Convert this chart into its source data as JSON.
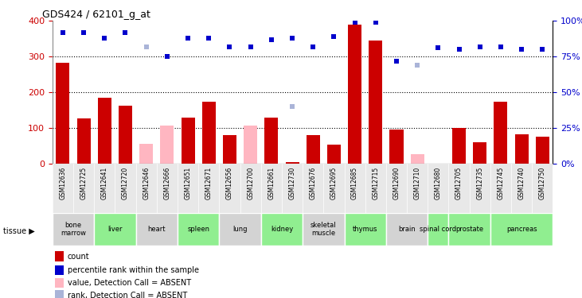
{
  "title": "GDS424 / 62101_g_at",
  "samples": [
    "GSM12636",
    "GSM12725",
    "GSM12641",
    "GSM12720",
    "GSM12646",
    "GSM12666",
    "GSM12651",
    "GSM12671",
    "GSM12656",
    "GSM12700",
    "GSM12661",
    "GSM12730",
    "GSM12676",
    "GSM12695",
    "GSM12685",
    "GSM12715",
    "GSM12690",
    "GSM12710",
    "GSM12680",
    "GSM12705",
    "GSM12735",
    "GSM12745",
    "GSM12740",
    "GSM12750"
  ],
  "count_values": [
    283,
    127,
    186,
    162,
    null,
    null,
    130,
    175,
    80,
    null,
    130,
    5,
    80,
    55,
    390,
    345,
    97,
    null,
    null,
    100,
    60,
    175,
    82,
    77
  ],
  "count_absent": [
    null,
    null,
    null,
    null,
    57,
    108,
    null,
    null,
    null,
    108,
    null,
    null,
    null,
    null,
    null,
    null,
    null,
    28,
    null,
    null,
    null,
    null,
    null,
    null
  ],
  "rank_values": [
    92,
    92,
    88,
    92,
    null,
    75,
    88,
    88,
    82,
    82,
    87,
    88,
    82,
    89,
    99,
    99,
    72,
    null,
    81,
    80,
    82,
    82,
    80,
    80
  ],
  "rank_absent": [
    null,
    null,
    null,
    null,
    82,
    null,
    null,
    null,
    null,
    null,
    null,
    40,
    null,
    null,
    null,
    null,
    null,
    69,
    null,
    null,
    null,
    null,
    null,
    null
  ],
  "tissues": [
    {
      "name": "bone\nmarrow",
      "start": 0,
      "end": 2,
      "color": "#d3d3d3"
    },
    {
      "name": "liver",
      "start": 2,
      "end": 4,
      "color": "#90ee90"
    },
    {
      "name": "heart",
      "start": 4,
      "end": 6,
      "color": "#d3d3d3"
    },
    {
      "name": "spleen",
      "start": 6,
      "end": 8,
      "color": "#90ee90"
    },
    {
      "name": "lung",
      "start": 8,
      "end": 10,
      "color": "#d3d3d3"
    },
    {
      "name": "kidney",
      "start": 10,
      "end": 12,
      "color": "#90ee90"
    },
    {
      "name": "skeletal\nmuscle",
      "start": 12,
      "end": 14,
      "color": "#d3d3d3"
    },
    {
      "name": "thymus",
      "start": 14,
      "end": 16,
      "color": "#90ee90"
    },
    {
      "name": "brain",
      "start": 16,
      "end": 18,
      "color": "#d3d3d3"
    },
    {
      "name": "spinal cord",
      "start": 18,
      "end": 19,
      "color": "#90ee90"
    },
    {
      "name": "prostate",
      "start": 19,
      "end": 21,
      "color": "#90ee90"
    },
    {
      "name": "pancreas",
      "start": 21,
      "end": 24,
      "color": "#90ee90"
    }
  ],
  "ylim_left": [
    0,
    400
  ],
  "ylim_right": [
    0,
    100
  ],
  "yticks_left": [
    0,
    100,
    200,
    300,
    400
  ],
  "yticks_right": [
    0,
    25,
    50,
    75,
    100
  ],
  "bar_color": "#cc0000",
  "bar_absent_color": "#ffb6c1",
  "rank_color": "#0000cc",
  "rank_absent_color": "#aab4d8",
  "grid_color": "black",
  "marker_size": 5,
  "legend_items": [
    {
      "color": "#cc0000",
      "label": "count"
    },
    {
      "color": "#0000cc",
      "label": "percentile rank within the sample"
    },
    {
      "color": "#ffb6c1",
      "label": "value, Detection Call = ABSENT"
    },
    {
      "color": "#aab4d8",
      "label": "rank, Detection Call = ABSENT"
    }
  ]
}
